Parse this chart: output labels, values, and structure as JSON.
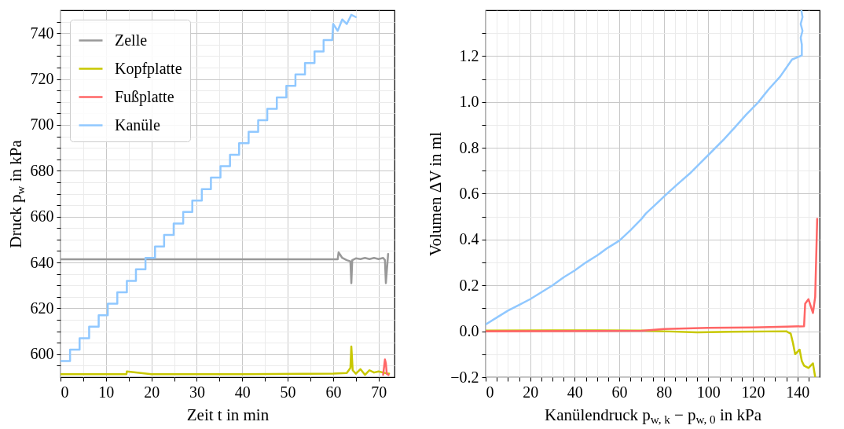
{
  "chart_data": [
    {
      "type": "line",
      "xlabel": "Zeit t in min",
      "ylabel": "Druck p$_{w}$ in kPa",
      "xlim": [
        0,
        73.5
      ],
      "ylim": [
        590,
        750
      ],
      "xticks": [
        0,
        {
          "value": 5,
          "label": null
        },
        10,
        {
          "value": 15,
          "label": null
        },
        20,
        {
          "value": 25,
          "label": null
        },
        30,
        {
          "value": 35,
          "label": null
        },
        40,
        {
          "value": 45,
          "label": null
        },
        50,
        {
          "value": 55,
          "label": null
        },
        60,
        {
          "value": 65,
          "label": null
        },
        70
      ],
      "yticks": [
        {
          "value": 595,
          "label": null
        },
        600,
        {
          "value": 605,
          "label": null
        },
        {
          "value": 610,
          "label": null
        },
        {
          "value": 615,
          "label": null
        },
        620,
        {
          "value": 625,
          "label": null
        },
        {
          "value": 630,
          "label": null
        },
        {
          "value": 635,
          "label": null
        },
        640,
        {
          "value": 645,
          "label": null
        },
        {
          "value": 650,
          "label": null
        },
        {
          "value": 655,
          "label": null
        },
        660,
        {
          "value": 665,
          "label": null
        },
        {
          "value": 670,
          "label": null
        },
        {
          "value": 675,
          "label": null
        },
        680,
        {
          "value": 685,
          "label": null
        },
        {
          "value": 690,
          "label": null
        },
        {
          "value": 695,
          "label": null
        },
        700,
        {
          "value": 705,
          "label": null
        },
        {
          "value": 710,
          "label": null
        },
        {
          "value": 715,
          "label": null
        },
        720,
        {
          "value": 725,
          "label": null
        },
        {
          "value": 730,
          "label": null
        },
        {
          "value": 735,
          "label": null
        },
        740,
        {
          "value": 745,
          "label": null
        }
      ],
      "grid": true,
      "legend": "top left",
      "line_style": "solid",
      "marker": "none",
      "series": [
        {
          "name": "Zelle",
          "color": "#999999",
          "x": [
            0,
            61,
            61.2,
            62,
            63,
            63.8,
            64,
            64.2,
            65,
            66,
            67,
            68,
            69,
            70,
            71,
            71.4,
            71.6,
            72.1
          ],
          "values": [
            641.4,
            641.4,
            644.4,
            642,
            641,
            640.5,
            631,
            641,
            641.8,
            641.5,
            642,
            641.5,
            642,
            641.5,
            642,
            641,
            631,
            643.7
          ]
        },
        {
          "name": "Kopfplatte",
          "color": "#c8c800",
          "x": [
            0,
            10,
            14.5,
            14.6,
            20,
            40,
            60,
            63,
            63.8,
            64,
            64.3,
            65,
            66,
            67,
            68,
            69,
            70,
            71,
            72,
            72.3
          ],
          "values": [
            591.3,
            591.3,
            591.3,
            592.5,
            591.3,
            591.3,
            591.5,
            591.8,
            594,
            603.4,
            593,
            591.5,
            593.5,
            591,
            593,
            592,
            592.5,
            592,
            591.5,
            591.5
          ]
        },
        {
          "name": "Fußplatte",
          "color": "#ff6666",
          "x": [
            71,
            71.4,
            71.6,
            71.8,
            72.2
          ],
          "values": [
            591,
            597.7,
            596,
            591.5,
            591
          ]
        },
        {
          "name": "Kanüle",
          "color": "#90c8ff",
          "x": [
            0,
            2.1,
            2.1,
            4.2,
            4.2,
            6.3,
            6.3,
            8.4,
            8.4,
            10.4,
            10.4,
            12.5,
            12.5,
            14.6,
            14.6,
            16.6,
            16.6,
            18.7,
            18.7,
            20.8,
            20.8,
            22.8,
            22.8,
            24.9,
            24.9,
            27.0,
            27.0,
            29.0,
            29.0,
            31.1,
            31.1,
            33.1,
            33.1,
            35.2,
            35.2,
            37.3,
            37.3,
            39.3,
            39.3,
            41.4,
            41.4,
            43.5,
            43.5,
            45.5,
            45.5,
            47.6,
            47.6,
            49.7,
            49.7,
            51.7,
            51.7,
            53.8,
            53.8,
            55.9,
            55.9,
            57.9,
            57.9,
            59.8,
            60,
            61,
            62,
            63,
            64,
            65
          ],
          "values": [
            597,
            597,
            602,
            602,
            607,
            607,
            612,
            612,
            617,
            617,
            622,
            622,
            627,
            627,
            632,
            632,
            637,
            637,
            642,
            642,
            647,
            647,
            652,
            652,
            657,
            657,
            662,
            662,
            667,
            667,
            672,
            672,
            677,
            677,
            682,
            682,
            687,
            687,
            692,
            692,
            697,
            697,
            702,
            702,
            707,
            707,
            712,
            712,
            717,
            717,
            722,
            722,
            727,
            727,
            732,
            732,
            737,
            737,
            744,
            741,
            746,
            744,
            748,
            747
          ]
        }
      ]
    },
    {
      "type": "line",
      "xlabel": "Kanülendruck p$_{w, k}$ − p$_{w, 0}$ in kPa",
      "ylabel": "Volumen ΔV in ml",
      "xlim": [
        0,
        150
      ],
      "ylim": [
        -0.2,
        1.4
      ],
      "xticks": [
        0,
        {
          "value": 5,
          "label": null
        },
        {
          "value": 10,
          "label": null
        },
        {
          "value": 15,
          "label": null
        },
        20,
        {
          "value": 25,
          "label": null
        },
        {
          "value": 30,
          "label": null
        },
        {
          "value": 35,
          "label": null
        },
        40,
        {
          "value": 45,
          "label": null
        },
        {
          "value": 50,
          "label": null
        },
        {
          "value": 55,
          "label": null
        },
        60,
        {
          "value": 65,
          "label": null
        },
        {
          "value": 70,
          "label": null
        },
        {
          "value": 75,
          "label": null
        },
        80,
        {
          "value": 85,
          "label": null
        },
        {
          "value": 90,
          "label": null
        },
        {
          "value": 95,
          "label": null
        },
        100,
        {
          "value": 105,
          "label": null
        },
        {
          "value": 110,
          "label": null
        },
        {
          "value": 115,
          "label": null
        },
        120,
        {
          "value": 125,
          "label": null
        },
        {
          "value": 130,
          "label": null
        },
        {
          "value": 135,
          "label": null
        },
        140,
        {
          "value": 145,
          "label": null
        }
      ],
      "yticks": [
        {
          "value": -0.2,
          "label": "−0.2"
        },
        {
          "value": -0.1,
          "label": null
        },
        {
          "value": 0,
          "label": "0.0"
        },
        {
          "value": 0.1,
          "label": null
        },
        0.2,
        {
          "value": 0.3,
          "label": null
        },
        0.4,
        {
          "value": 0.5,
          "label": null
        },
        0.6,
        {
          "value": 0.7,
          "label": null
        },
        0.8,
        {
          "value": 0.9,
          "label": null
        },
        {
          "value": 1,
          "label": "1.0"
        },
        {
          "value": 1.1,
          "label": null
        },
        1.2,
        {
          "value": 1.3,
          "label": null
        }
      ],
      "grid": true,
      "line_style": "solid",
      "marker": "none",
      "series": [
        {
          "color": "#c8c800",
          "x": [
            0,
            30,
            70,
            80,
            95,
            110,
            135,
            137,
            138,
            139,
            141,
            142,
            143,
            145,
            147,
            148
          ],
          "values": [
            0.003,
            0.004,
            0.003,
            0,
            -0.005,
            -0.002,
            0,
            -0.01,
            -0.05,
            -0.1,
            -0.08,
            -0.13,
            -0.15,
            -0.16,
            -0.14,
            -0.2
          ]
        },
        {
          "color": "#ff6666",
          "x": [
            0,
            70,
            80,
            100,
            120,
            135,
            143,
            143.5,
            145,
            147,
            148,
            148.9
          ],
          "values": [
            0,
            0.002,
            0.01,
            0.015,
            0.017,
            0.02,
            0.022,
            0.12,
            0.14,
            0.08,
            0.15,
            0.49
          ]
        },
        {
          "color": "#90c8ff",
          "x": [
            0,
            5,
            10,
            15,
            20,
            25,
            30,
            35,
            40,
            45,
            50,
            55,
            60,
            65,
            70,
            72,
            76,
            81.7,
            86,
            91.7,
            96,
            101.7,
            107,
            112,
            117,
            122.3,
            127,
            132.3,
            137.6,
            142,
            142,
            141.5,
            142.3,
            141.5,
            142.3,
            141.8
          ],
          "values": [
            0.03,
            0.06,
            0.09,
            0.115,
            0.14,
            0.17,
            0.2,
            0.235,
            0.265,
            0.3,
            0.33,
            0.365,
            0.395,
            0.44,
            0.49,
            0.514,
            0.55,
            0.602,
            0.64,
            0.688,
            0.73,
            0.785,
            0.837,
            0.89,
            0.945,
            0.997,
            1.054,
            1.111,
            1.185,
            1.203,
            1.25,
            1.28,
            1.31,
            1.34,
            1.37,
            1.4
          ]
        }
      ]
    }
  ]
}
